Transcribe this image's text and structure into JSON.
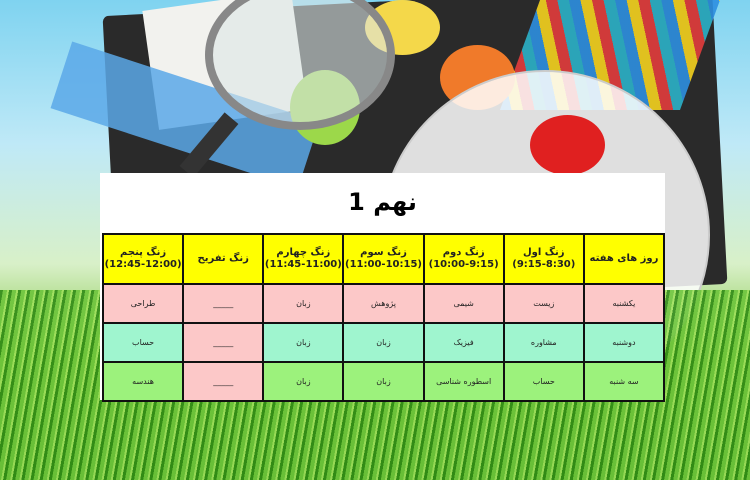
{
  "title": "نهم 1",
  "headers": [
    "روز های هفته",
    "زنگ اول (8:30-9:15)",
    "زنگ دوم (9:15-10:00)",
    "زنگ سوم (10:15-11:00)",
    "زنگ چهارم (11:00-11:45)",
    "زنگ تفریح",
    "زنگ پنجم (12:00-12:45)"
  ],
  "rows": [
    [
      "یکشنبه",
      "زیست",
      "شیمی",
      "پژوهش",
      "زبان",
      "_____",
      "طراحی"
    ],
    [
      "دوشنبه",
      "مشاوره",
      "فیزیک",
      "زبان",
      "زبان",
      "_____",
      "حساب"
    ],
    [
      "سه شنبه",
      "حساب",
      "اسطوره شناسی",
      "زبان",
      "زبان",
      "_____",
      "هندسه"
    ]
  ],
  "colors": {
    "header": "#ffff00",
    "row1": "#fcc8c8",
    "row2": "#9ff5cf",
    "row3": "#9cf27c"
  }
}
